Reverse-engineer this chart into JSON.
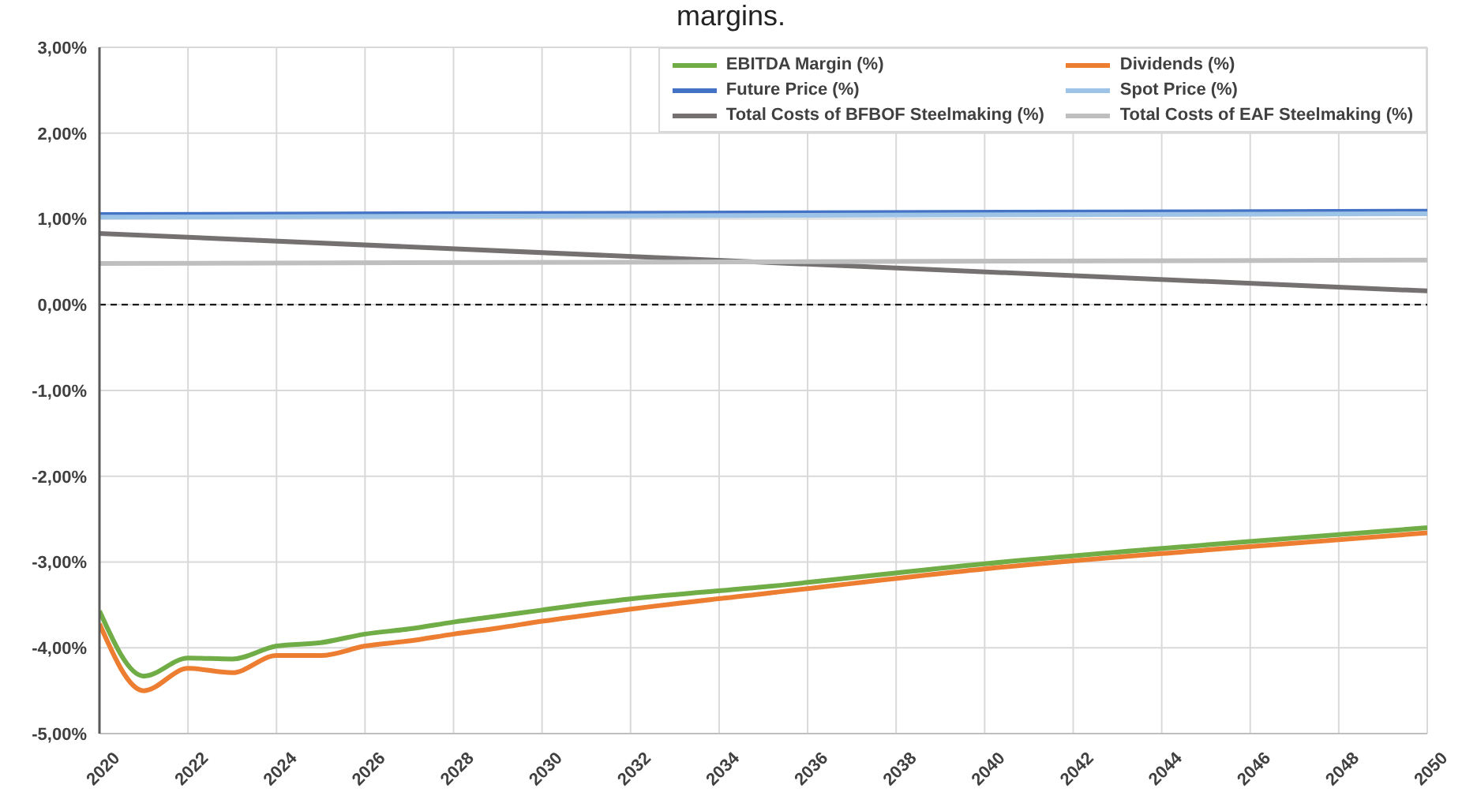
{
  "chart_data": {
    "type": "line",
    "title": "margins.",
    "xlim": [
      2020,
      2050
    ],
    "xticks": [
      2020,
      2022,
      2024,
      2026,
      2028,
      2030,
      2032,
      2034,
      2036,
      2038,
      2040,
      2042,
      2044,
      2046,
      2048,
      2050
    ],
    "ylim": [
      -5,
      3
    ],
    "yticks": [
      {
        "value": -5,
        "label": "-5,00%"
      },
      {
        "value": -4,
        "label": "-4,00%"
      },
      {
        "value": -3,
        "label": "-3,00%"
      },
      {
        "value": -2,
        "label": "-2,00%"
      },
      {
        "value": -1,
        "label": "-1,00%"
      },
      {
        "value": 0,
        "label": "0,00%"
      },
      {
        "value": 1,
        "label": "1,00%"
      },
      {
        "value": 2,
        "label": "2,00%"
      },
      {
        "value": 3,
        "label": "3,00%"
      }
    ],
    "grid": true,
    "legend": "top right",
    "marker": "none",
    "line_style": "solid",
    "ref_lines": [
      {
        "axis": "y",
        "value": 0,
        "color": "#000000",
        "line_style": "dashed"
      }
    ],
    "series": [
      {
        "name": "EBITDA Margin (%)",
        "color": "#70ad47",
        "x": [
          2020,
          2021,
          2022,
          2023,
          2024,
          2025,
          2026,
          2027,
          2028,
          2029,
          2030,
          2031,
          2032,
          2035,
          2040,
          2045,
          2050
        ],
        "values": [
          -3.57,
          -4.33,
          -4.12,
          -4.13,
          -3.98,
          -3.94,
          -3.84,
          -3.78,
          -3.7,
          -3.63,
          -3.56,
          -3.49,
          -3.43,
          -3.29,
          -3.02,
          -2.8,
          -2.6
        ]
      },
      {
        "name": "Dividends (%)",
        "color": "#ed7d31",
        "x": [
          2020,
          2021,
          2022,
          2023,
          2024,
          2025,
          2026,
          2027,
          2028,
          2029,
          2030,
          2031,
          2032,
          2035,
          2040,
          2045,
          2050
        ],
        "values": [
          -3.72,
          -4.5,
          -4.24,
          -4.29,
          -4.09,
          -4.09,
          -3.98,
          -3.92,
          -3.84,
          -3.77,
          -3.69,
          -3.62,
          -3.55,
          -3.37,
          -3.08,
          -2.86,
          -2.66
        ]
      },
      {
        "name": "Future Price (%)",
        "color": "#4472c4",
        "x": [
          2020,
          2050
        ],
        "values": [
          1.05,
          1.09
        ]
      },
      {
        "name": "Spot Price (%)",
        "color": "#9dc3e6",
        "x": [
          2020,
          2050
        ],
        "values": [
          1.02,
          1.06
        ]
      },
      {
        "name": "Total Costs of BFBOF Steelmaking (%)",
        "color": "#767171",
        "x": [
          2020,
          2050
        ],
        "values": [
          0.83,
          0.16
        ]
      },
      {
        "name": "Total Costs of EAF Steelmaking (%)",
        "color": "#bfbfbf",
        "x": [
          2020,
          2050
        ],
        "values": [
          0.48,
          0.52
        ]
      }
    ]
  }
}
